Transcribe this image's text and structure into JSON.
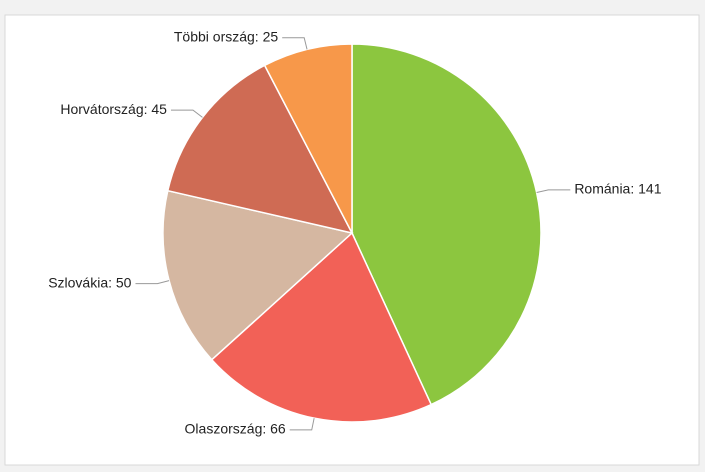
{
  "chart_data": {
    "type": "pie",
    "categories": [
      "Románia",
      "Olaszország",
      "Szlovákia",
      "Horvátország",
      "Többi ország"
    ],
    "values": [
      141,
      66,
      50,
      45,
      25
    ],
    "value_labels": [
      "Románia: 141",
      "Olaszország: 66",
      "Szlovákia: 50",
      "Horvátország: 45",
      "Többi ország: 25"
    ],
    "colors": [
      "#8cc63f",
      "#f26157",
      "#d5b7a1",
      "#cf6b54",
      "#f7984a"
    ]
  }
}
